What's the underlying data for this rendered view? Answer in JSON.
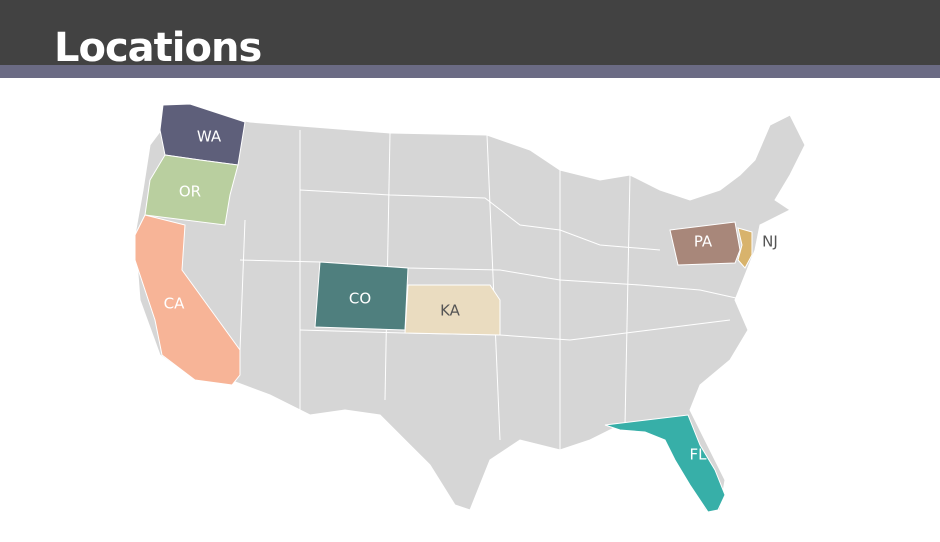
{
  "header": {
    "title": "Locations"
  },
  "map": {
    "states": [
      {
        "label": "WA"
      },
      {
        "label": "OR"
      },
      {
        "label": "CA"
      },
      {
        "label": "CO"
      },
      {
        "label": "KA"
      },
      {
        "label": "PA"
      },
      {
        "label": "NJ"
      },
      {
        "label": "FL"
      }
    ]
  }
}
